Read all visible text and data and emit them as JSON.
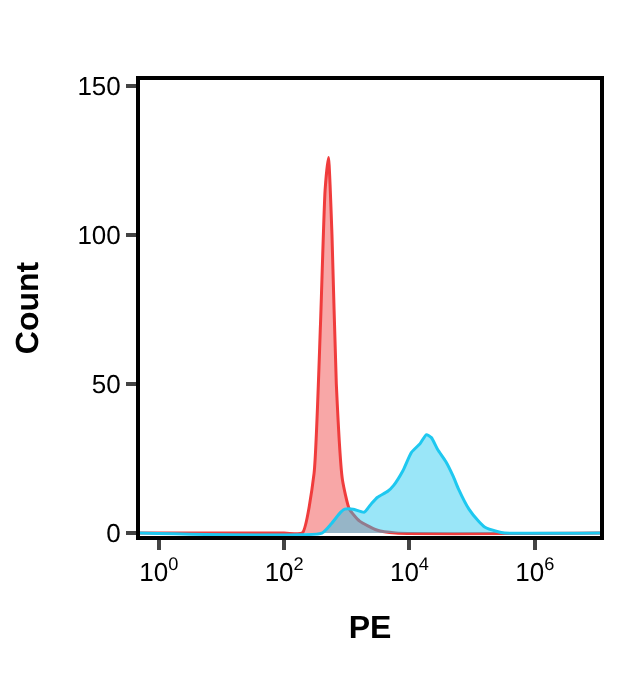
{
  "chart_data": {
    "type": "area",
    "xlabel": "PE",
    "ylabel": "Count",
    "log": "x",
    "xlim": [
      0.5,
      11000000
    ],
    "xticks": [
      {
        "value": 1,
        "label": "10$^{0}$"
      },
      {
        "value": 100,
        "label": "10$^{2}$"
      },
      {
        "value": 10000,
        "label": "10$^{4}$"
      },
      {
        "value": 1000000,
        "label": "10$^{6}$"
      }
    ],
    "ylim": [
      -1,
      152
    ],
    "yticks": [
      0,
      50,
      100,
      150
    ],
    "series": [
      {
        "color": "#f03c3c",
        "x": [
          0.5,
          100,
          195,
          300,
          380,
          450,
          510,
          580,
          680,
          850,
          1100,
          1600,
          3000,
          6000,
          11000000
        ],
        "values": [
          0,
          0,
          0,
          20,
          70,
          115,
          126,
          100,
          50,
          18,
          8,
          4,
          1,
          0,
          0
        ]
      },
      {
        "color": "#1ec8f0",
        "x": [
          0.5,
          400,
          560,
          800,
          930,
          1260,
          1900,
          2500,
          3100,
          4500,
          5600,
          7900,
          10700,
          14800,
          18600,
          22400,
          28200,
          38000,
          50000,
          60000,
          89000,
          126000,
          158000,
          251000,
          331000,
          11000000
        ],
        "values": [
          0,
          0,
          3,
          7,
          8,
          8,
          7,
          10,
          12,
          14,
          16,
          21,
          27,
          30,
          33,
          32,
          28,
          24,
          19,
          15,
          8,
          4,
          2,
          0.5,
          0,
          0
        ]
      }
    ]
  }
}
